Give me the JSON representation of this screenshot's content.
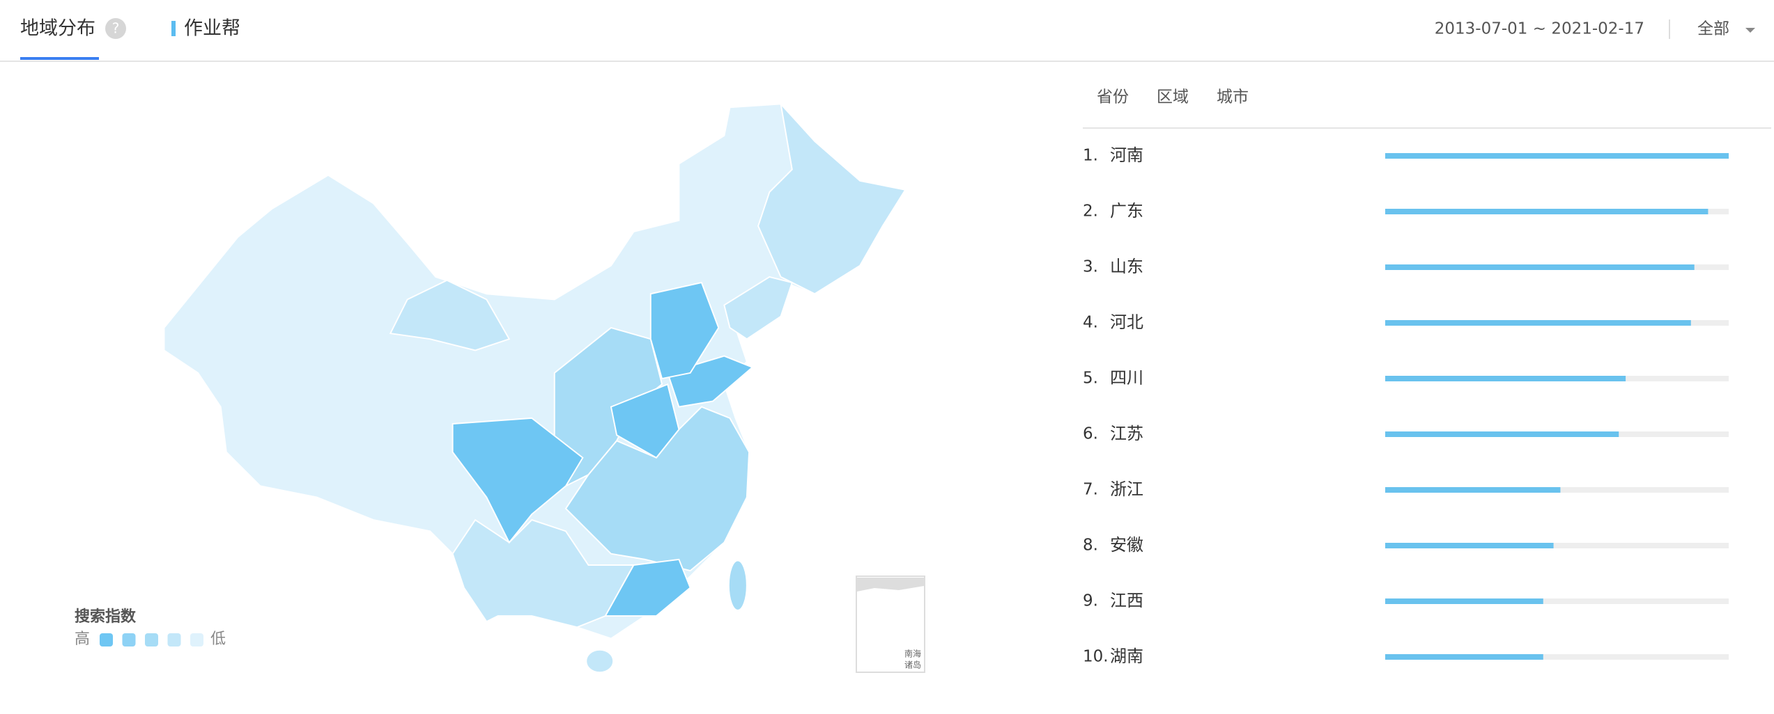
{
  "header": {
    "tab": "地域分布",
    "help": "?",
    "product": "作业帮",
    "date_range": "2013-07-01 ~ 2021-02-17",
    "filter": "全部"
  },
  "ranking": {
    "tabs": [
      "省份",
      "区域",
      "城市"
    ],
    "rows": [
      {
        "rank": "1.",
        "name": "河南",
        "value": 100
      },
      {
        "rank": "2.",
        "name": "广东",
        "value": 94
      },
      {
        "rank": "3.",
        "name": "山东",
        "value": 90
      },
      {
        "rank": "4.",
        "name": "河北",
        "value": 89
      },
      {
        "rank": "5.",
        "name": "四川",
        "value": 70
      },
      {
        "rank": "6.",
        "name": "江苏",
        "value": 68
      },
      {
        "rank": "7.",
        "name": "浙江",
        "value": 51
      },
      {
        "rank": "8.",
        "name": "安徽",
        "value": 49
      },
      {
        "rank": "9.",
        "name": "江西",
        "value": 46
      },
      {
        "rank": "10.",
        "name": "湖南",
        "value": 46
      }
    ],
    "bar_color": "#69c2ee",
    "track_color": "#eeeeee"
  },
  "legend": {
    "title": "搜索指数",
    "high": "高",
    "low": "低",
    "colors": [
      "#6ec6f3",
      "#8ed2f5",
      "#a6dcf6",
      "#c3e7f9",
      "#dff2fc"
    ]
  },
  "inset": {
    "label_1": "南海",
    "label_2": "诸岛"
  }
}
